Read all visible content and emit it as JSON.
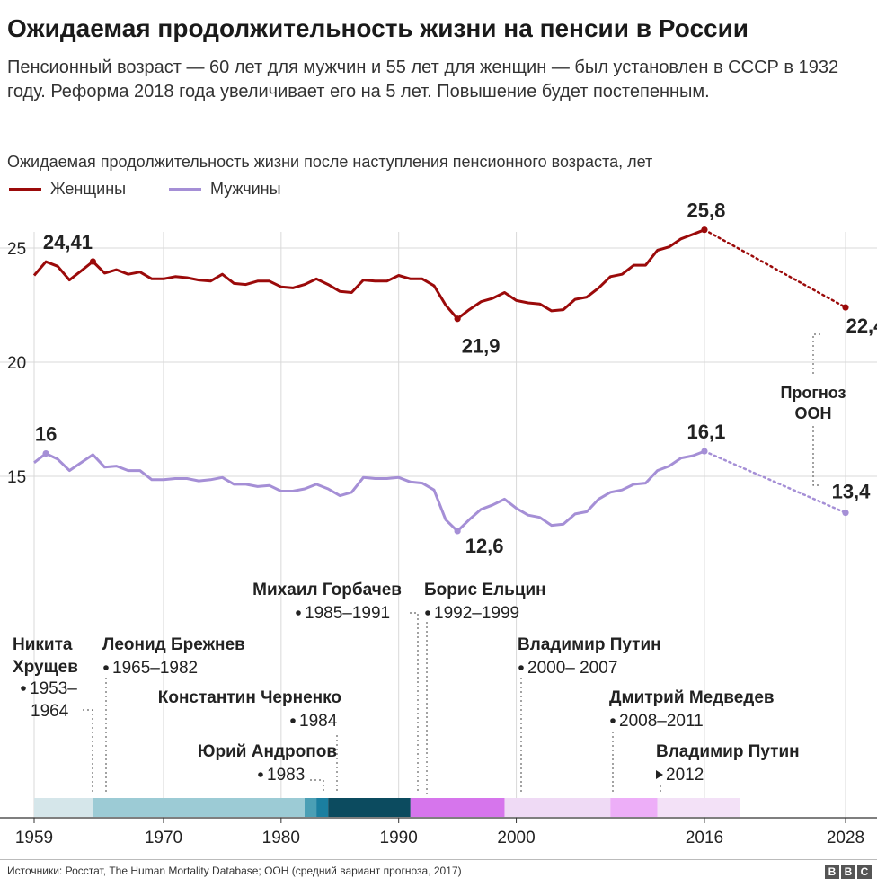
{
  "header": {
    "title": "Ожидаемая продолжительность жизни на пенсии в России",
    "subtitle": "Пенсионный возраст — 60 лет для мужчин и 55 лет для женщин — был установлен в СССР в 1932 году. Реформа 2018 года увеличивает его на 5 лет. Повышение будет постепенным.",
    "chart_label": "Ожидаемая продолжительность жизни после наступления пенсионного возраста, лет"
  },
  "legend": {
    "women": "Женщины",
    "men": "Мужчины"
  },
  "colors": {
    "women": "#9b0a0a",
    "men": "#a58fd6",
    "grid": "#d9d9d9",
    "axis": "#333333"
  },
  "chart_data": {
    "type": "line",
    "x_tick_labels": [
      "1959",
      "1970",
      "1980",
      "1990",
      "2000",
      "2016",
      "2028"
    ],
    "x_ticks": [
      1959,
      1970,
      1980,
      1990,
      2000,
      2016,
      2028
    ],
    "y_tick_labels": [
      "25",
      "20",
      "15"
    ],
    "y_ticks": [
      25,
      20,
      15
    ],
    "xlim": [
      1959,
      2030
    ],
    "ylim": [
      9.7,
      26.3
    ],
    "grid": true,
    "series": [
      {
        "name": "Женщины",
        "color": "#9b0a0a",
        "x": [
          1959,
          1960,
          1961,
          1962,
          1963,
          1964,
          1965,
          1966,
          1967,
          1968,
          1969,
          1970,
          1971,
          1972,
          1973,
          1974,
          1975,
          1976,
          1977,
          1978,
          1979,
          1980,
          1981,
          1982,
          1983,
          1984,
          1985,
          1986,
          1987,
          1988,
          1989,
          1990,
          1991,
          1992,
          1993,
          1994,
          1995,
          1996,
          1997,
          1998,
          1999,
          2000,
          2001,
          2002,
          2003,
          2004,
          2005,
          2006,
          2007,
          2008,
          2009,
          2010,
          2011,
          2012,
          2013,
          2014,
          2015,
          2016
        ],
        "y": [
          23.8,
          24.4,
          24.2,
          23.6,
          24.0,
          24.41,
          23.9,
          24.05,
          23.85,
          23.95,
          23.65,
          23.65,
          23.75,
          23.7,
          23.6,
          23.55,
          23.85,
          23.45,
          23.4,
          23.55,
          23.55,
          23.3,
          23.25,
          23.4,
          23.65,
          23.4,
          23.1,
          23.05,
          23.6,
          23.55,
          23.55,
          23.8,
          23.65,
          23.65,
          23.35,
          22.5,
          21.9,
          22.3,
          22.65,
          22.8,
          23.05,
          22.7,
          22.6,
          22.55,
          22.25,
          22.3,
          22.75,
          22.85,
          23.25,
          23.75,
          23.85,
          24.25,
          24.25,
          24.9,
          25.05,
          25.4,
          25.6,
          25.8
        ],
        "forecast": {
          "x": [
            2016,
            2028
          ],
          "y": [
            25.8,
            22.4
          ]
        }
      },
      {
        "name": "Мужчины",
        "color": "#a58fd6",
        "x": [
          1959,
          1960,
          1961,
          1962,
          1963,
          1964,
          1965,
          1966,
          1967,
          1968,
          1969,
          1970,
          1971,
          1972,
          1973,
          1974,
          1975,
          1976,
          1977,
          1978,
          1979,
          1980,
          1981,
          1982,
          1983,
          1984,
          1985,
          1986,
          1987,
          1988,
          1989,
          1990,
          1991,
          1992,
          1993,
          1994,
          1995,
          1996,
          1997,
          1998,
          1999,
          2000,
          2001,
          2002,
          2003,
          2004,
          2005,
          2006,
          2007,
          2008,
          2009,
          2010,
          2011,
          2012,
          2013,
          2014,
          2015,
          2016
        ],
        "y": [
          15.6,
          16.0,
          15.75,
          15.25,
          15.6,
          15.95,
          15.4,
          15.45,
          15.25,
          15.25,
          14.85,
          14.85,
          14.9,
          14.9,
          14.8,
          14.85,
          14.95,
          14.65,
          14.65,
          14.55,
          14.6,
          14.35,
          14.35,
          14.45,
          14.65,
          14.45,
          14.15,
          14.3,
          14.95,
          14.9,
          14.9,
          14.95,
          14.75,
          14.7,
          14.4,
          13.1,
          12.6,
          13.1,
          13.55,
          13.75,
          14.0,
          13.6,
          13.3,
          13.2,
          12.85,
          12.9,
          13.35,
          13.45,
          14.0,
          14.3,
          14.4,
          14.65,
          14.7,
          15.25,
          15.45,
          15.8,
          15.9,
          16.1
        ],
        "forecast": {
          "x": [
            2016,
            2028
          ],
          "y": [
            16.1,
            13.4
          ]
        }
      }
    ],
    "annotations": [
      {
        "text": "24,41",
        "x": 1964,
        "y": 24.41,
        "series": "Женщины"
      },
      {
        "text": "21,9",
        "x": 1995,
        "y": 21.9,
        "series": "Женщины"
      },
      {
        "text": "25,8",
        "x": 2016,
        "y": 25.8,
        "series": "Женщины"
      },
      {
        "text": "22,4",
        "x": 2028,
        "y": 22.4,
        "series": "Женщины"
      },
      {
        "text": "16",
        "x": 1960,
        "y": 16.0,
        "series": "Мужчины"
      },
      {
        "text": "12,6",
        "x": 1995,
        "y": 12.6,
        "series": "Мужчины"
      },
      {
        "text": "16,1",
        "x": 2016,
        "y": 16.1,
        "series": "Мужчины"
      },
      {
        "text": "13,4",
        "x": 2028,
        "y": 13.4,
        "series": "Мужчины"
      }
    ],
    "forecast_note": {
      "line1": "Прогноз",
      "line2": "ООН"
    },
    "leaders": [
      {
        "name_lines": [
          "Никита",
          "Хрущев"
        ],
        "period_lines": [
          "1953–",
          "1964"
        ],
        "start": 1953,
        "end": 1964,
        "color": "#d5e6ea"
      },
      {
        "name_lines": [
          "Леонид Брежнев"
        ],
        "period_lines": [
          "1965–1982"
        ],
        "start": 1964,
        "end": 1982,
        "color": "#9ccbd5"
      },
      {
        "name_lines": [
          "Юрий Андропов"
        ],
        "period_lines": [
          "1983"
        ],
        "start": 1982,
        "end": 1983,
        "color": "#4b9fb5"
      },
      {
        "name_lines": [
          "Константин Черненко"
        ],
        "period_lines": [
          "1984"
        ],
        "start": 1983,
        "end": 1984,
        "color": "#1b7fa0"
      },
      {
        "name_lines": [
          "Михаил Горбачев"
        ],
        "period_lines": [
          "1985–1991"
        ],
        "start": 1984,
        "end": 1991,
        "color": "#0c4b5f"
      },
      {
        "name_lines": [
          "Борис Ельцин"
        ],
        "period_lines": [
          "1992–1999"
        ],
        "start": 1991,
        "end": 1999,
        "color": "#d675ec"
      },
      {
        "name_lines": [
          "Владимир Путин"
        ],
        "period_lines": [
          "2000– 2007"
        ],
        "start": 1999,
        "end": 2008,
        "color": "#efdaf5"
      },
      {
        "name_lines": [
          "Дмитрий Медведев"
        ],
        "period_lines": [
          "2008–2011"
        ],
        "start": 2008,
        "end": 2012,
        "color": "#edaef8"
      },
      {
        "name_lines": [
          "Владимир Путин"
        ],
        "period_lines": [
          "2012"
        ],
        "start": 2012,
        "end": 2019,
        "color": "#f3e1f7"
      }
    ]
  },
  "footer": {
    "source": "Источники: Росстат, The Human Mortality Database; ООН (средний вариант прогноза, 2017)",
    "logo": [
      "B",
      "B",
      "C"
    ]
  }
}
